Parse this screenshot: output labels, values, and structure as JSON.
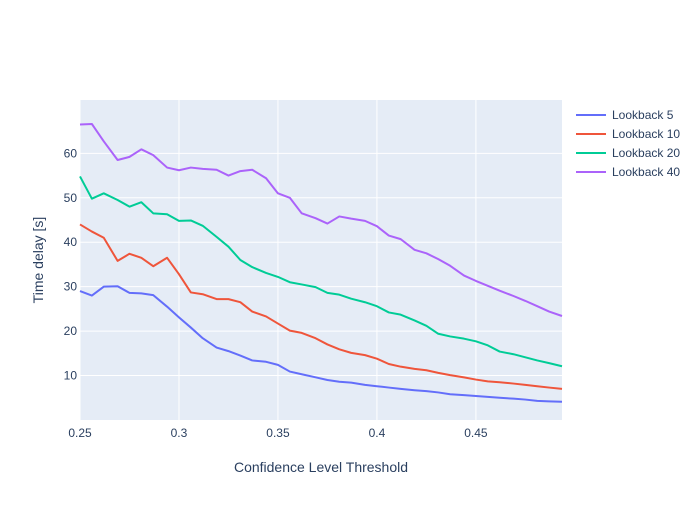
{
  "chart_data": {
    "type": "line",
    "title": "",
    "xlabel": "Confidence Level Threshold",
    "ylabel": "Time delay [s]",
    "xlim": [
      0.25,
      0.4935
    ],
    "ylim": [
      0,
      72
    ],
    "x_ticks": [
      0.25,
      0.3,
      0.35,
      0.4,
      0.45
    ],
    "x_tick_labels": [
      "0.25",
      "0.3",
      "0.35",
      "0.4",
      "0.45"
    ],
    "y_ticks": [
      10,
      20,
      30,
      40,
      50,
      60
    ],
    "y_tick_labels": [
      "10",
      "20",
      "30",
      "40",
      "50",
      "60"
    ],
    "grid": true,
    "legend_position": "right",
    "plot_background": "#e5ecf6",
    "grid_color": "#ffffff",
    "x": [
      0.25,
      0.256,
      0.262,
      0.269,
      0.275,
      0.281,
      0.287,
      0.294,
      0.3,
      0.306,
      0.312,
      0.319,
      0.325,
      0.331,
      0.337,
      0.344,
      0.35,
      0.356,
      0.362,
      0.369,
      0.375,
      0.381,
      0.387,
      0.394,
      0.4,
      0.406,
      0.412,
      0.419,
      0.425,
      0.431,
      0.437,
      0.444,
      0.45,
      0.456,
      0.462,
      0.469,
      0.475,
      0.481,
      0.487,
      0.4935
    ],
    "series": [
      {
        "name": "Lookback 5",
        "color": "#636efa",
        "values": [
          29.0,
          28.0,
          30.0,
          30.1,
          28.6,
          28.5,
          28.1,
          25.5,
          23.1,
          20.8,
          18.4,
          16.3,
          15.5,
          14.5,
          13.4,
          13.1,
          12.4,
          10.9,
          10.3,
          9.6,
          9.0,
          8.6,
          8.4,
          7.9,
          7.6,
          7.3,
          7.0,
          6.7,
          6.5,
          6.2,
          5.8,
          5.6,
          5.4,
          5.2,
          5.0,
          4.8,
          4.6,
          4.3,
          4.2,
          4.1
        ]
      },
      {
        "name": "Lookback 10",
        "color": "#ef553b",
        "values": [
          44.0,
          42.4,
          41.0,
          35.8,
          37.4,
          36.5,
          34.6,
          36.5,
          32.8,
          28.7,
          28.3,
          27.2,
          27.2,
          26.5,
          24.4,
          23.3,
          21.7,
          20.1,
          19.6,
          18.4,
          17.0,
          15.9,
          15.1,
          14.6,
          13.8,
          12.6,
          12.0,
          11.5,
          11.2,
          10.6,
          10.1,
          9.6,
          9.1,
          8.7,
          8.5,
          8.2,
          7.9,
          7.6,
          7.3,
          7.0
        ]
      },
      {
        "name": "Lookback 20",
        "color": "#00cc96",
        "values": [
          54.8,
          49.8,
          51.0,
          49.5,
          48.0,
          49.0,
          46.5,
          46.3,
          44.8,
          44.9,
          43.7,
          41.2,
          39.0,
          36.0,
          34.4,
          33.1,
          32.2,
          31.0,
          30.5,
          29.9,
          28.6,
          28.2,
          27.3,
          26.5,
          25.6,
          24.2,
          23.7,
          22.4,
          21.2,
          19.4,
          18.8,
          18.3,
          17.7,
          16.8,
          15.4,
          14.8,
          14.1,
          13.4,
          12.8,
          12.1
        ]
      },
      {
        "name": "Lookback 40",
        "color": "#ab63fa",
        "values": [
          66.5,
          66.6,
          62.7,
          58.5,
          59.2,
          60.9,
          59.6,
          56.8,
          56.2,
          56.8,
          56.5,
          56.3,
          55.0,
          56.0,
          56.3,
          54.4,
          51.0,
          50.0,
          46.5,
          45.4,
          44.2,
          45.8,
          45.3,
          44.8,
          43.6,
          41.5,
          40.7,
          38.3,
          37.5,
          36.2,
          34.7,
          32.5,
          31.3,
          30.2,
          29.1,
          27.9,
          26.8,
          25.6,
          24.4,
          23.4
        ]
      }
    ]
  }
}
